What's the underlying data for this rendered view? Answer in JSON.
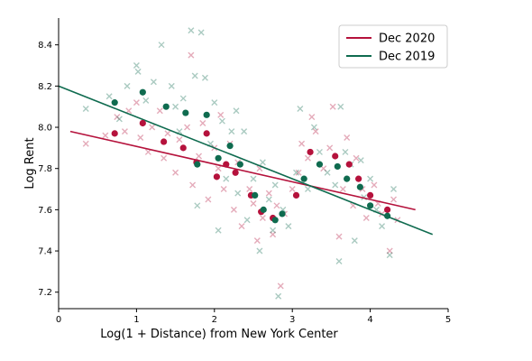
{
  "chart_data": {
    "type": "scatter",
    "title": "",
    "xlabel": "Log(1 + Distance) from New York Center",
    "ylabel": "Log Rent",
    "xlim": [
      0,
      5
    ],
    "ylim": [
      7.12,
      8.53
    ],
    "x_ticks": [
      "0",
      "1",
      "2",
      "3",
      "4",
      "5"
    ],
    "y_ticks": [
      "7.2",
      "7.4",
      "7.6",
      "7.8",
      "8.0",
      "8.2",
      "8.4"
    ],
    "grid": false,
    "legend_position": "top-right",
    "colors": {
      "dec2020": "#b5123c",
      "dec2019": "#0f6b4f"
    },
    "series": [
      {
        "name": "Dec 2020",
        "color": "#b5123c",
        "binned_means": [
          [
            0.72,
            7.97
          ],
          [
            1.08,
            8.02
          ],
          [
            1.35,
            7.93
          ],
          [
            1.6,
            7.9
          ],
          [
            1.77,
            7.83
          ],
          [
            1.9,
            7.97
          ],
          [
            2.03,
            7.76
          ],
          [
            2.15,
            7.82
          ],
          [
            2.27,
            7.78
          ],
          [
            2.47,
            7.67
          ],
          [
            2.6,
            7.59
          ],
          [
            2.75,
            7.56
          ],
          [
            3.05,
            7.67
          ],
          [
            3.23,
            7.88
          ],
          [
            3.55,
            7.86
          ],
          [
            3.73,
            7.82
          ],
          [
            3.85,
            7.75
          ],
          [
            4.0,
            7.67
          ],
          [
            4.22,
            7.6
          ]
        ],
        "raw_points": [
          [
            0.35,
            7.92
          ],
          [
            0.6,
            7.96
          ],
          [
            0.75,
            8.05
          ],
          [
            0.85,
            7.98
          ],
          [
            0.9,
            8.08
          ],
          [
            1.0,
            8.12
          ],
          [
            1.05,
            7.95
          ],
          [
            1.15,
            7.88
          ],
          [
            1.2,
            8.0
          ],
          [
            1.3,
            8.08
          ],
          [
            1.35,
            7.85
          ],
          [
            1.4,
            7.97
          ],
          [
            1.5,
            7.78
          ],
          [
            1.55,
            7.94
          ],
          [
            1.65,
            8.0
          ],
          [
            1.7,
            8.35
          ],
          [
            1.72,
            7.72
          ],
          [
            1.8,
            7.86
          ],
          [
            1.85,
            8.02
          ],
          [
            1.92,
            7.65
          ],
          [
            2.0,
            7.9
          ],
          [
            2.05,
            7.8
          ],
          [
            2.08,
            8.06
          ],
          [
            2.12,
            7.7
          ],
          [
            2.2,
            7.92
          ],
          [
            2.25,
            7.6
          ],
          [
            2.3,
            7.83
          ],
          [
            2.35,
            7.52
          ],
          [
            2.45,
            7.7
          ],
          [
            2.5,
            7.63
          ],
          [
            2.55,
            7.45
          ],
          [
            2.58,
            7.8
          ],
          [
            2.62,
            7.56
          ],
          [
            2.7,
            7.68
          ],
          [
            2.75,
            7.48
          ],
          [
            2.8,
            7.62
          ],
          [
            2.85,
            7.23
          ],
          [
            2.9,
            7.58
          ],
          [
            3.0,
            7.7
          ],
          [
            3.08,
            7.78
          ],
          [
            3.12,
            7.92
          ],
          [
            3.2,
            7.85
          ],
          [
            3.25,
            8.05
          ],
          [
            3.3,
            7.98
          ],
          [
            3.4,
            7.8
          ],
          [
            3.48,
            7.9
          ],
          [
            3.52,
            8.1
          ],
          [
            3.6,
            7.47
          ],
          [
            3.65,
            7.7
          ],
          [
            3.7,
            7.95
          ],
          [
            3.78,
            7.62
          ],
          [
            3.82,
            7.85
          ],
          [
            3.9,
            7.7
          ],
          [
            3.95,
            7.56
          ],
          [
            4.05,
            7.72
          ],
          [
            4.1,
            7.63
          ],
          [
            4.15,
            7.58
          ],
          [
            4.25,
            7.4
          ],
          [
            4.3,
            7.65
          ],
          [
            4.35,
            7.55
          ]
        ],
        "fit_line": [
          [
            0.15,
            7.98
          ],
          [
            4.58,
            7.6
          ]
        ]
      },
      {
        "name": "Dec 2019",
        "color": "#0f6b4f",
        "binned_means": [
          [
            0.72,
            8.12
          ],
          [
            1.08,
            8.17
          ],
          [
            1.38,
            8.1
          ],
          [
            1.63,
            8.07
          ],
          [
            1.78,
            7.82
          ],
          [
            1.9,
            8.06
          ],
          [
            2.05,
            7.85
          ],
          [
            2.2,
            7.91
          ],
          [
            2.33,
            7.82
          ],
          [
            2.52,
            7.67
          ],
          [
            2.63,
            7.6
          ],
          [
            2.78,
            7.55
          ],
          [
            2.87,
            7.58
          ],
          [
            3.15,
            7.75
          ],
          [
            3.35,
            7.82
          ],
          [
            3.58,
            7.81
          ],
          [
            3.7,
            7.75
          ],
          [
            3.87,
            7.71
          ],
          [
            4.0,
            7.62
          ],
          [
            4.22,
            7.57
          ]
        ],
        "raw_points": [
          [
            0.35,
            8.09
          ],
          [
            0.65,
            8.15
          ],
          [
            0.78,
            8.04
          ],
          [
            0.88,
            8.2
          ],
          [
            1.0,
            8.3
          ],
          [
            1.02,
            8.27
          ],
          [
            1.12,
            8.13
          ],
          [
            1.22,
            8.22
          ],
          [
            1.32,
            8.4
          ],
          [
            1.45,
            8.2
          ],
          [
            1.5,
            8.1
          ],
          [
            1.55,
            7.98
          ],
          [
            1.6,
            8.14
          ],
          [
            1.7,
            8.47
          ],
          [
            1.75,
            8.25
          ],
          [
            1.78,
            7.62
          ],
          [
            1.83,
            8.46
          ],
          [
            1.88,
            8.24
          ],
          [
            1.95,
            7.92
          ],
          [
            2.0,
            8.12
          ],
          [
            2.05,
            7.5
          ],
          [
            2.1,
            8.03
          ],
          [
            2.15,
            7.75
          ],
          [
            2.22,
            7.98
          ],
          [
            2.28,
            8.08
          ],
          [
            2.3,
            7.68
          ],
          [
            2.38,
            7.98
          ],
          [
            2.42,
            7.55
          ],
          [
            2.5,
            7.75
          ],
          [
            2.58,
            7.4
          ],
          [
            2.62,
            7.83
          ],
          [
            2.7,
            7.65
          ],
          [
            2.75,
            7.5
          ],
          [
            2.78,
            7.72
          ],
          [
            2.82,
            7.18
          ],
          [
            2.88,
            7.6
          ],
          [
            2.95,
            7.52
          ],
          [
            3.05,
            7.78
          ],
          [
            3.1,
            8.09
          ],
          [
            3.2,
            7.7
          ],
          [
            3.28,
            8.0
          ],
          [
            3.35,
            7.88
          ],
          [
            3.45,
            7.78
          ],
          [
            3.55,
            7.72
          ],
          [
            3.6,
            7.35
          ],
          [
            3.62,
            8.1
          ],
          [
            3.68,
            7.88
          ],
          [
            3.75,
            7.82
          ],
          [
            3.8,
            7.45
          ],
          [
            3.88,
            7.84
          ],
          [
            3.92,
            7.66
          ],
          [
            4.0,
            7.75
          ],
          [
            4.08,
            7.6
          ],
          [
            4.15,
            7.52
          ],
          [
            4.25,
            7.38
          ],
          [
            4.3,
            7.7
          ]
        ],
        "fit_line": [
          [
            0,
            8.2
          ],
          [
            4.8,
            7.48
          ]
        ]
      }
    ]
  }
}
